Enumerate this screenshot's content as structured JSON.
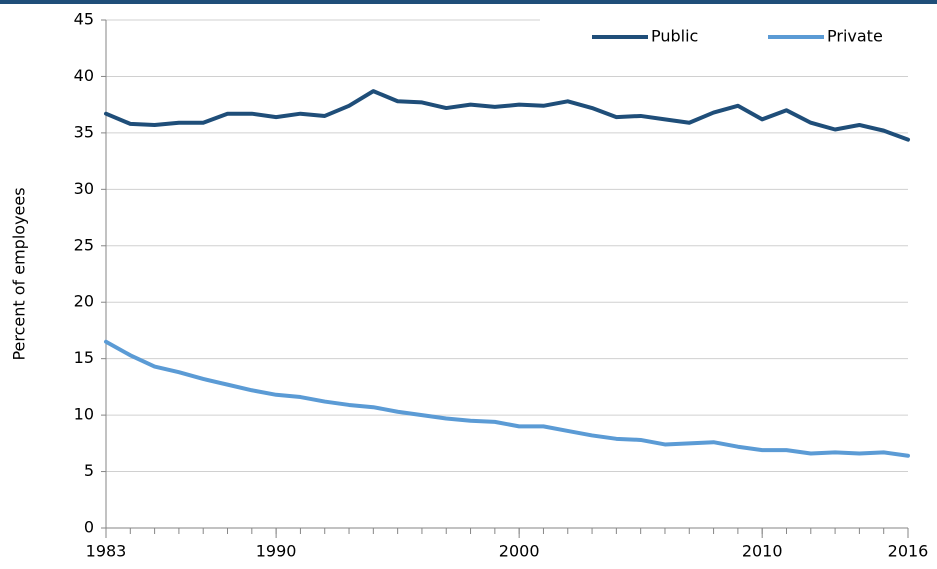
{
  "chart_data": {
    "type": "line",
    "y_label": "Percent of employees",
    "x": [
      1983,
      1984,
      1985,
      1986,
      1987,
      1988,
      1989,
      1990,
      1991,
      1992,
      1993,
      1994,
      1995,
      1996,
      1997,
      1998,
      1999,
      2000,
      2001,
      2002,
      2003,
      2004,
      2005,
      2006,
      2007,
      2008,
      2009,
      2010,
      2011,
      2012,
      2013,
      2014,
      2015,
      2016
    ],
    "series": [
      {
        "name": "Public",
        "color": "#1f4e79",
        "values": [
          36.7,
          35.8,
          35.7,
          35.9,
          35.9,
          36.7,
          36.7,
          36.4,
          36.7,
          36.5,
          37.4,
          38.7,
          37.8,
          37.7,
          37.2,
          37.5,
          37.3,
          37.5,
          37.4,
          37.8,
          37.2,
          36.4,
          36.5,
          36.2,
          35.9,
          36.8,
          37.4,
          36.2,
          37.0,
          35.9,
          35.3,
          35.7,
          35.2,
          34.4
        ]
      },
      {
        "name": "Private",
        "color": "#5b9bd5",
        "values": [
          16.5,
          15.3,
          14.3,
          13.8,
          13.2,
          12.7,
          12.2,
          11.8,
          11.6,
          11.2,
          10.9,
          10.7,
          10.3,
          10.0,
          9.7,
          9.5,
          9.4,
          9.0,
          9.0,
          8.6,
          8.2,
          7.9,
          7.8,
          7.4,
          7.5,
          7.6,
          7.2,
          6.9,
          6.9,
          6.6,
          6.7,
          6.6,
          6.7,
          6.4
        ]
      }
    ],
    "xlim": [
      1983,
      2016
    ],
    "xticks": [
      1983,
      1990,
      2000,
      2010,
      2016
    ],
    "ylim": [
      0,
      45
    ],
    "yticks": [
      0,
      5,
      10,
      15,
      20,
      25,
      30,
      35,
      40,
      45
    ],
    "grid": true,
    "legend": "top-right"
  }
}
